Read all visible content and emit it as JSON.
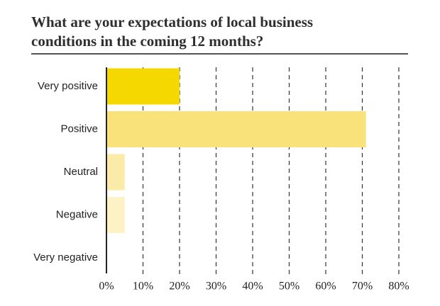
{
  "chart_data": {
    "type": "hbar",
    "title": "What are your expectations of local business conditions in the coming 12 months?",
    "categories": [
      "Very positive",
      "Positive",
      "Neutral",
      "Negative",
      "Very negative"
    ],
    "values": [
      20,
      71,
      5,
      5,
      0
    ],
    "colors": [
      "#f5d800",
      "#f9e27a",
      "#fbeba8",
      "#fcf2c6",
      "#fdf6d8"
    ],
    "xlim": [
      0,
      80
    ],
    "xticks": [
      {
        "value": 0,
        "label": "0%"
      },
      {
        "value": 10,
        "label": "10%"
      },
      {
        "value": 20,
        "label": "20%"
      },
      {
        "value": 30,
        "label": "30%"
      },
      {
        "value": 40,
        "label": "40%"
      },
      {
        "value": 50,
        "label": "50%"
      },
      {
        "value": 60,
        "label": "60%"
      },
      {
        "value": 70,
        "label": "70%"
      },
      {
        "value": 80,
        "label": "80%"
      }
    ],
    "grid": true
  }
}
